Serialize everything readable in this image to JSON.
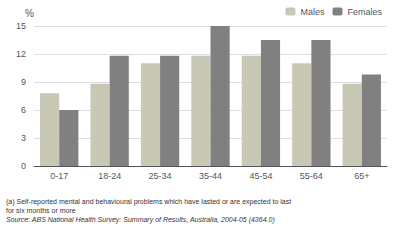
{
  "chart_data": {
    "type": "bar",
    "categories": [
      "0-17",
      "18-24",
      "25-34",
      "35-44",
      "45-54",
      "55-64",
      "65+"
    ],
    "series": [
      {
        "name": "Males",
        "color": "#c8c8b4",
        "values": [
          7.8,
          8.8,
          11.0,
          11.8,
          11.8,
          11.0,
          8.8
        ]
      },
      {
        "name": "Females",
        "color": "#808080",
        "values": [
          6.0,
          11.8,
          11.8,
          15.0,
          13.5,
          13.5,
          9.8
        ]
      }
    ],
    "ylabel": "%",
    "ylim": [
      0,
      15
    ],
    "yticks": [
      0,
      3,
      6,
      9,
      12,
      15
    ],
    "grid": true,
    "legend": "upper right",
    "annotations": [
      "(a) Self-reported mental and behavioural problems which have lasted or are expected to last",
      "for six months or more",
      "Source: ABS National Health Survey: Summary of Results, Australia, 2004-05 (4364.0)"
    ]
  }
}
